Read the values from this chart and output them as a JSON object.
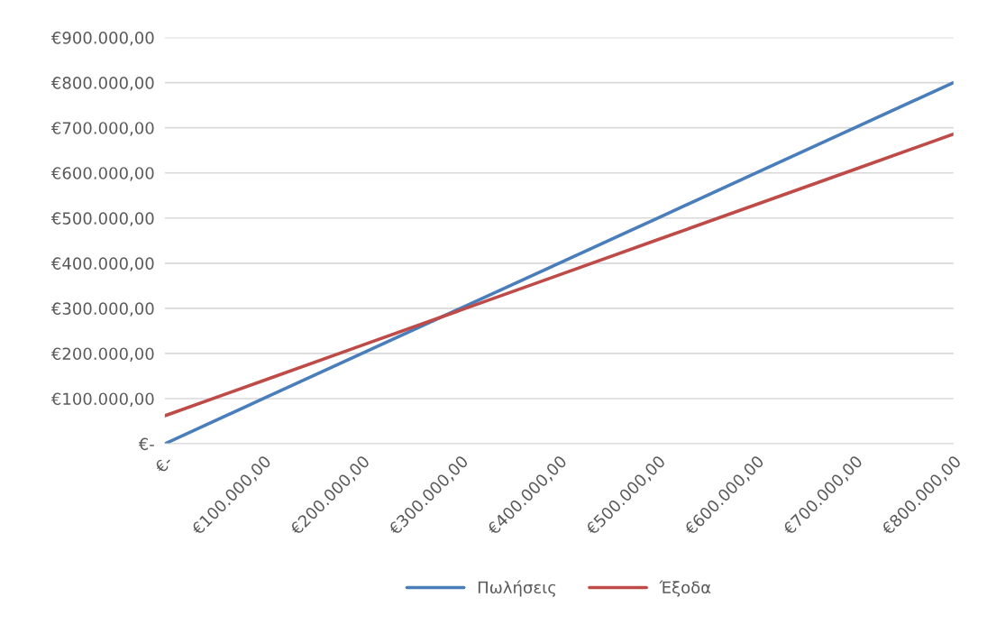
{
  "chart_data": {
    "type": "line",
    "categories": [
      "€-",
      "€100.000,00",
      "€200.000,00",
      "€300.000,00",
      "€400.000,00",
      "€500.000,00",
      "€600.000,00",
      "€700.000,00",
      "€800.000,00"
    ],
    "series": [
      {
        "name": "Πωλήσεις",
        "color": "#4a7ebb",
        "values": [
          0,
          100000,
          200000,
          300000,
          400000,
          500000,
          600000,
          700000,
          800000
        ]
      },
      {
        "name": "Έξοδα",
        "color": "#be4b48",
        "values": [
          62000,
          140000,
          218000,
          296000,
          374000,
          452000,
          530000,
          608000,
          686000
        ]
      }
    ],
    "ylim": [
      0,
      900000
    ],
    "yticks": [
      {
        "value": 0,
        "label": "€-"
      },
      {
        "value": 100000,
        "label": "€100.000,00"
      },
      {
        "value": 200000,
        "label": "€200.000,00"
      },
      {
        "value": 300000,
        "label": "€300.000,00"
      },
      {
        "value": 400000,
        "label": "€400.000,00"
      },
      {
        "value": 500000,
        "label": "€500.000,00"
      },
      {
        "value": 600000,
        "label": "€600.000,00"
      },
      {
        "value": 700000,
        "label": "€700.000,00"
      },
      {
        "value": 800000,
        "label": "€800.000,00"
      },
      {
        "value": 900000,
        "label": "€900.000,00"
      }
    ],
    "grid": "y",
    "legend": "bottom",
    "marker": "none",
    "line_style": "solid"
  }
}
